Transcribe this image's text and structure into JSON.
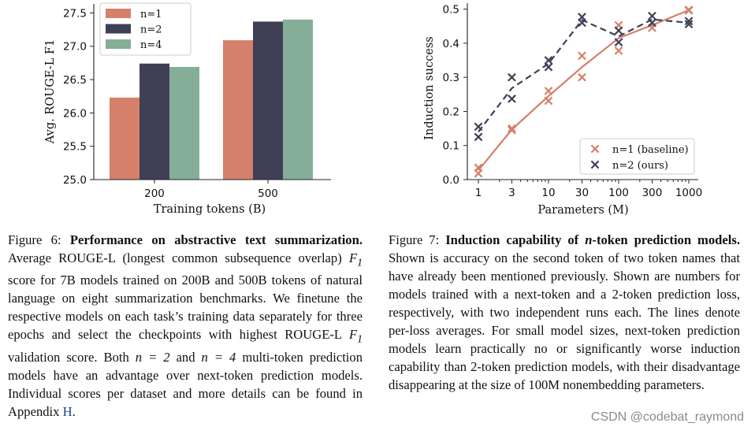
{
  "chart_data": [
    {
      "type": "bar",
      "categories": [
        "200",
        "500"
      ],
      "series": [
        {
          "name": "n=1",
          "color": "#d4806b",
          "values": [
            26.23,
            27.09
          ]
        },
        {
          "name": "n=2",
          "color": "#3f4056",
          "values": [
            26.74,
            27.37
          ]
        },
        {
          "name": "n=4",
          "color": "#85ae98",
          "values": [
            26.69,
            27.4
          ]
        }
      ],
      "xlabel": "Training tokens (B)",
      "ylabel": "Avg. ROUGE-L F1",
      "ylim": [
        25.0,
        27.6
      ],
      "yticks": [
        "25.0",
        "25.5",
        "26.0",
        "26.5",
        "27.0",
        "27.5"
      ],
      "legend": "top-left"
    },
    {
      "type": "line",
      "x": [
        1,
        3,
        10,
        30,
        100,
        300,
        1000
      ],
      "xticks": [
        "1",
        "3",
        "10",
        "30",
        "100",
        "300",
        "1000"
      ],
      "series": [
        {
          "name": "n=1 (baseline)",
          "color": "#d4806b",
          "line": "solid",
          "mean": [
            0.027,
            0.147,
            0.245,
            0.33,
            0.415,
            0.453,
            0.497
          ],
          "runs": [
            [
              0.035,
              0.018
            ],
            [
              0.15,
              0.145
            ],
            [
              0.26,
              0.231
            ],
            [
              0.363,
              0.3
            ],
            [
              0.453,
              0.378
            ],
            [
              0.46,
              0.445
            ],
            [
              0.498,
              0.496
            ]
          ]
        },
        {
          "name": "n=2 (ours)",
          "color": "#3f4056",
          "line": "dashed",
          "mean": [
            0.14,
            0.268,
            0.34,
            0.468,
            0.42,
            0.47,
            0.46
          ],
          "runs": [
            [
              0.155,
              0.125
            ],
            [
              0.3,
              0.237
            ],
            [
              0.35,
              0.33
            ],
            [
              0.477,
              0.46
            ],
            [
              0.437,
              0.403
            ],
            [
              0.48,
              0.46
            ],
            [
              0.465,
              0.456
            ]
          ]
        }
      ],
      "xlabel": "Parameters (M)",
      "ylabel": "Induction success",
      "ylim": [
        0.0,
        0.5
      ],
      "yticks": [
        "0.0",
        "0.1",
        "0.2",
        "0.3",
        "0.4",
        "0.5"
      ],
      "xscale": "log",
      "legend": "bottom-right"
    }
  ],
  "captions": {
    "fig6": {
      "label": "Figure 6:",
      "title": "Performance on abstractive text summarization.",
      "body_1": "Average ROUGE-L (longest common subsequence overlap)",
      "f1_symbol": "F",
      "f1_sub": "1",
      "body_2": "score for 7B models trained on 200B and 500B tokens of natural language on eight summarization benchmarks. We finetune the respective models on each task’s training data separately for three epochs and select the checkpoints with highest ROUGE-L",
      "body_3": "validation score. Both",
      "n2": "n = 2",
      "and": "and",
      "n4": "n = 4",
      "body_4": "multi-token prediction models have an advantage over next-token prediction models. Individual scores per dataset and more details can be found in Appendix",
      "appendix": "H",
      "end": "."
    },
    "fig7": {
      "label": "Figure 7:",
      "title_a": "Induction capability of",
      "title_n": "n",
      "title_b": "-token prediction models.",
      "body": "Shown is accuracy on the second token of two token names that have already been mentioned previously. Shown are numbers for models trained with a next-token and a 2-token prediction loss, respectively, with two independent runs each. The lines denote per-loss averages. For small model sizes, next-token prediction models learn practically no or significantly worse induction capability than 2-token prediction models, with their disadvantage disappearing at the size of 100M nonembedding parameters."
    }
  },
  "watermark": "CSDN @codebat_raymond"
}
